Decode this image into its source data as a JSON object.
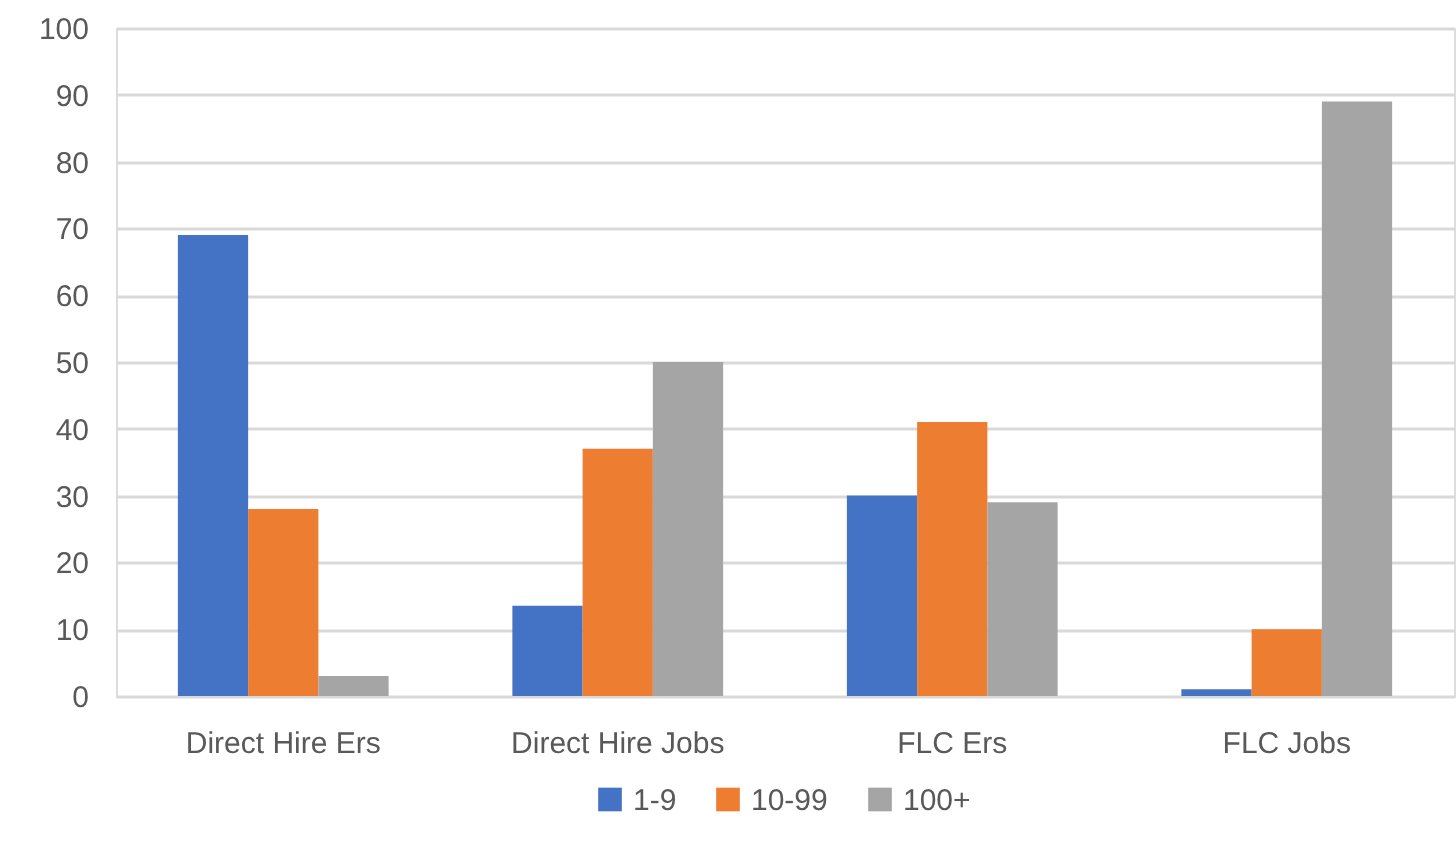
{
  "chart_data": {
    "type": "bar",
    "categories": [
      "Direct Hire Ers",
      "Direct Hire Jobs",
      "FLC Ers",
      "FLC Jobs"
    ],
    "series": [
      {
        "name": "1-9",
        "color": "#4472c4",
        "values": [
          69,
          13.5,
          30,
          1
        ]
      },
      {
        "name": "10-99",
        "color": "#ed7d31",
        "values": [
          28,
          37,
          41,
          10
        ]
      },
      {
        "name": "100+",
        "color": "#a5a5a5",
        "values": [
          3,
          50,
          29,
          89
        ]
      }
    ],
    "ylim": [
      0,
      100
    ],
    "yticks": [
      0,
      10,
      20,
      30,
      40,
      50,
      60,
      70,
      80,
      90,
      100
    ],
    "grid": "y",
    "legend": "bottom"
  }
}
